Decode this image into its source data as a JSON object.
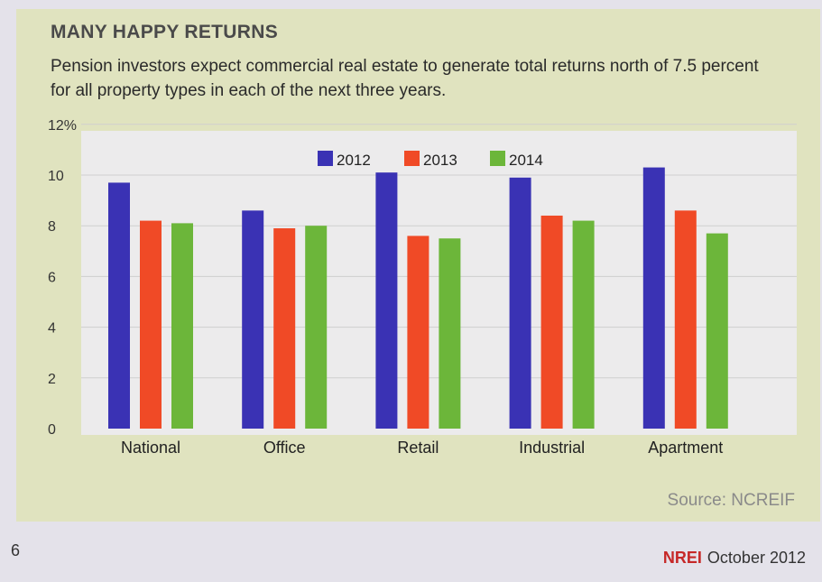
{
  "colors": {
    "panel": "#e0e3bf",
    "plot_bg": "#ecebec",
    "gridline": "#cfcfcf",
    "series_2012": "#3a32b4",
    "series_2013": "#f04a26",
    "series_2014": "#6cb63a",
    "brand": "#c62828"
  },
  "chart_data": {
    "type": "bar",
    "title": "MANY HAPPY RETURNS",
    "subtitle": "Pension investors expect commercial real estate to generate total returns north of 7.5 percent for all property types in each of the next three years.",
    "categories": [
      "National",
      "Office",
      "Retail",
      "Industrial",
      "Apartment"
    ],
    "series": [
      {
        "name": "2012",
        "values": [
          9.7,
          8.6,
          10.1,
          9.9,
          10.3
        ]
      },
      {
        "name": "2013",
        "values": [
          8.2,
          7.9,
          7.6,
          8.4,
          8.6
        ]
      },
      {
        "name": "2014",
        "values": [
          8.1,
          8.0,
          7.5,
          8.2,
          7.7
        ]
      }
    ],
    "yticks": [
      "0",
      "2",
      "4",
      "6",
      "8",
      "10",
      "12%"
    ],
    "ylim": [
      0,
      12
    ],
    "xlabel": "",
    "ylabel": "",
    "grid": true,
    "legend_position": "top-center",
    "source": "Source: NCREIF"
  },
  "page": {
    "number": "6",
    "brand": "NREI",
    "issue": "October 2012"
  }
}
